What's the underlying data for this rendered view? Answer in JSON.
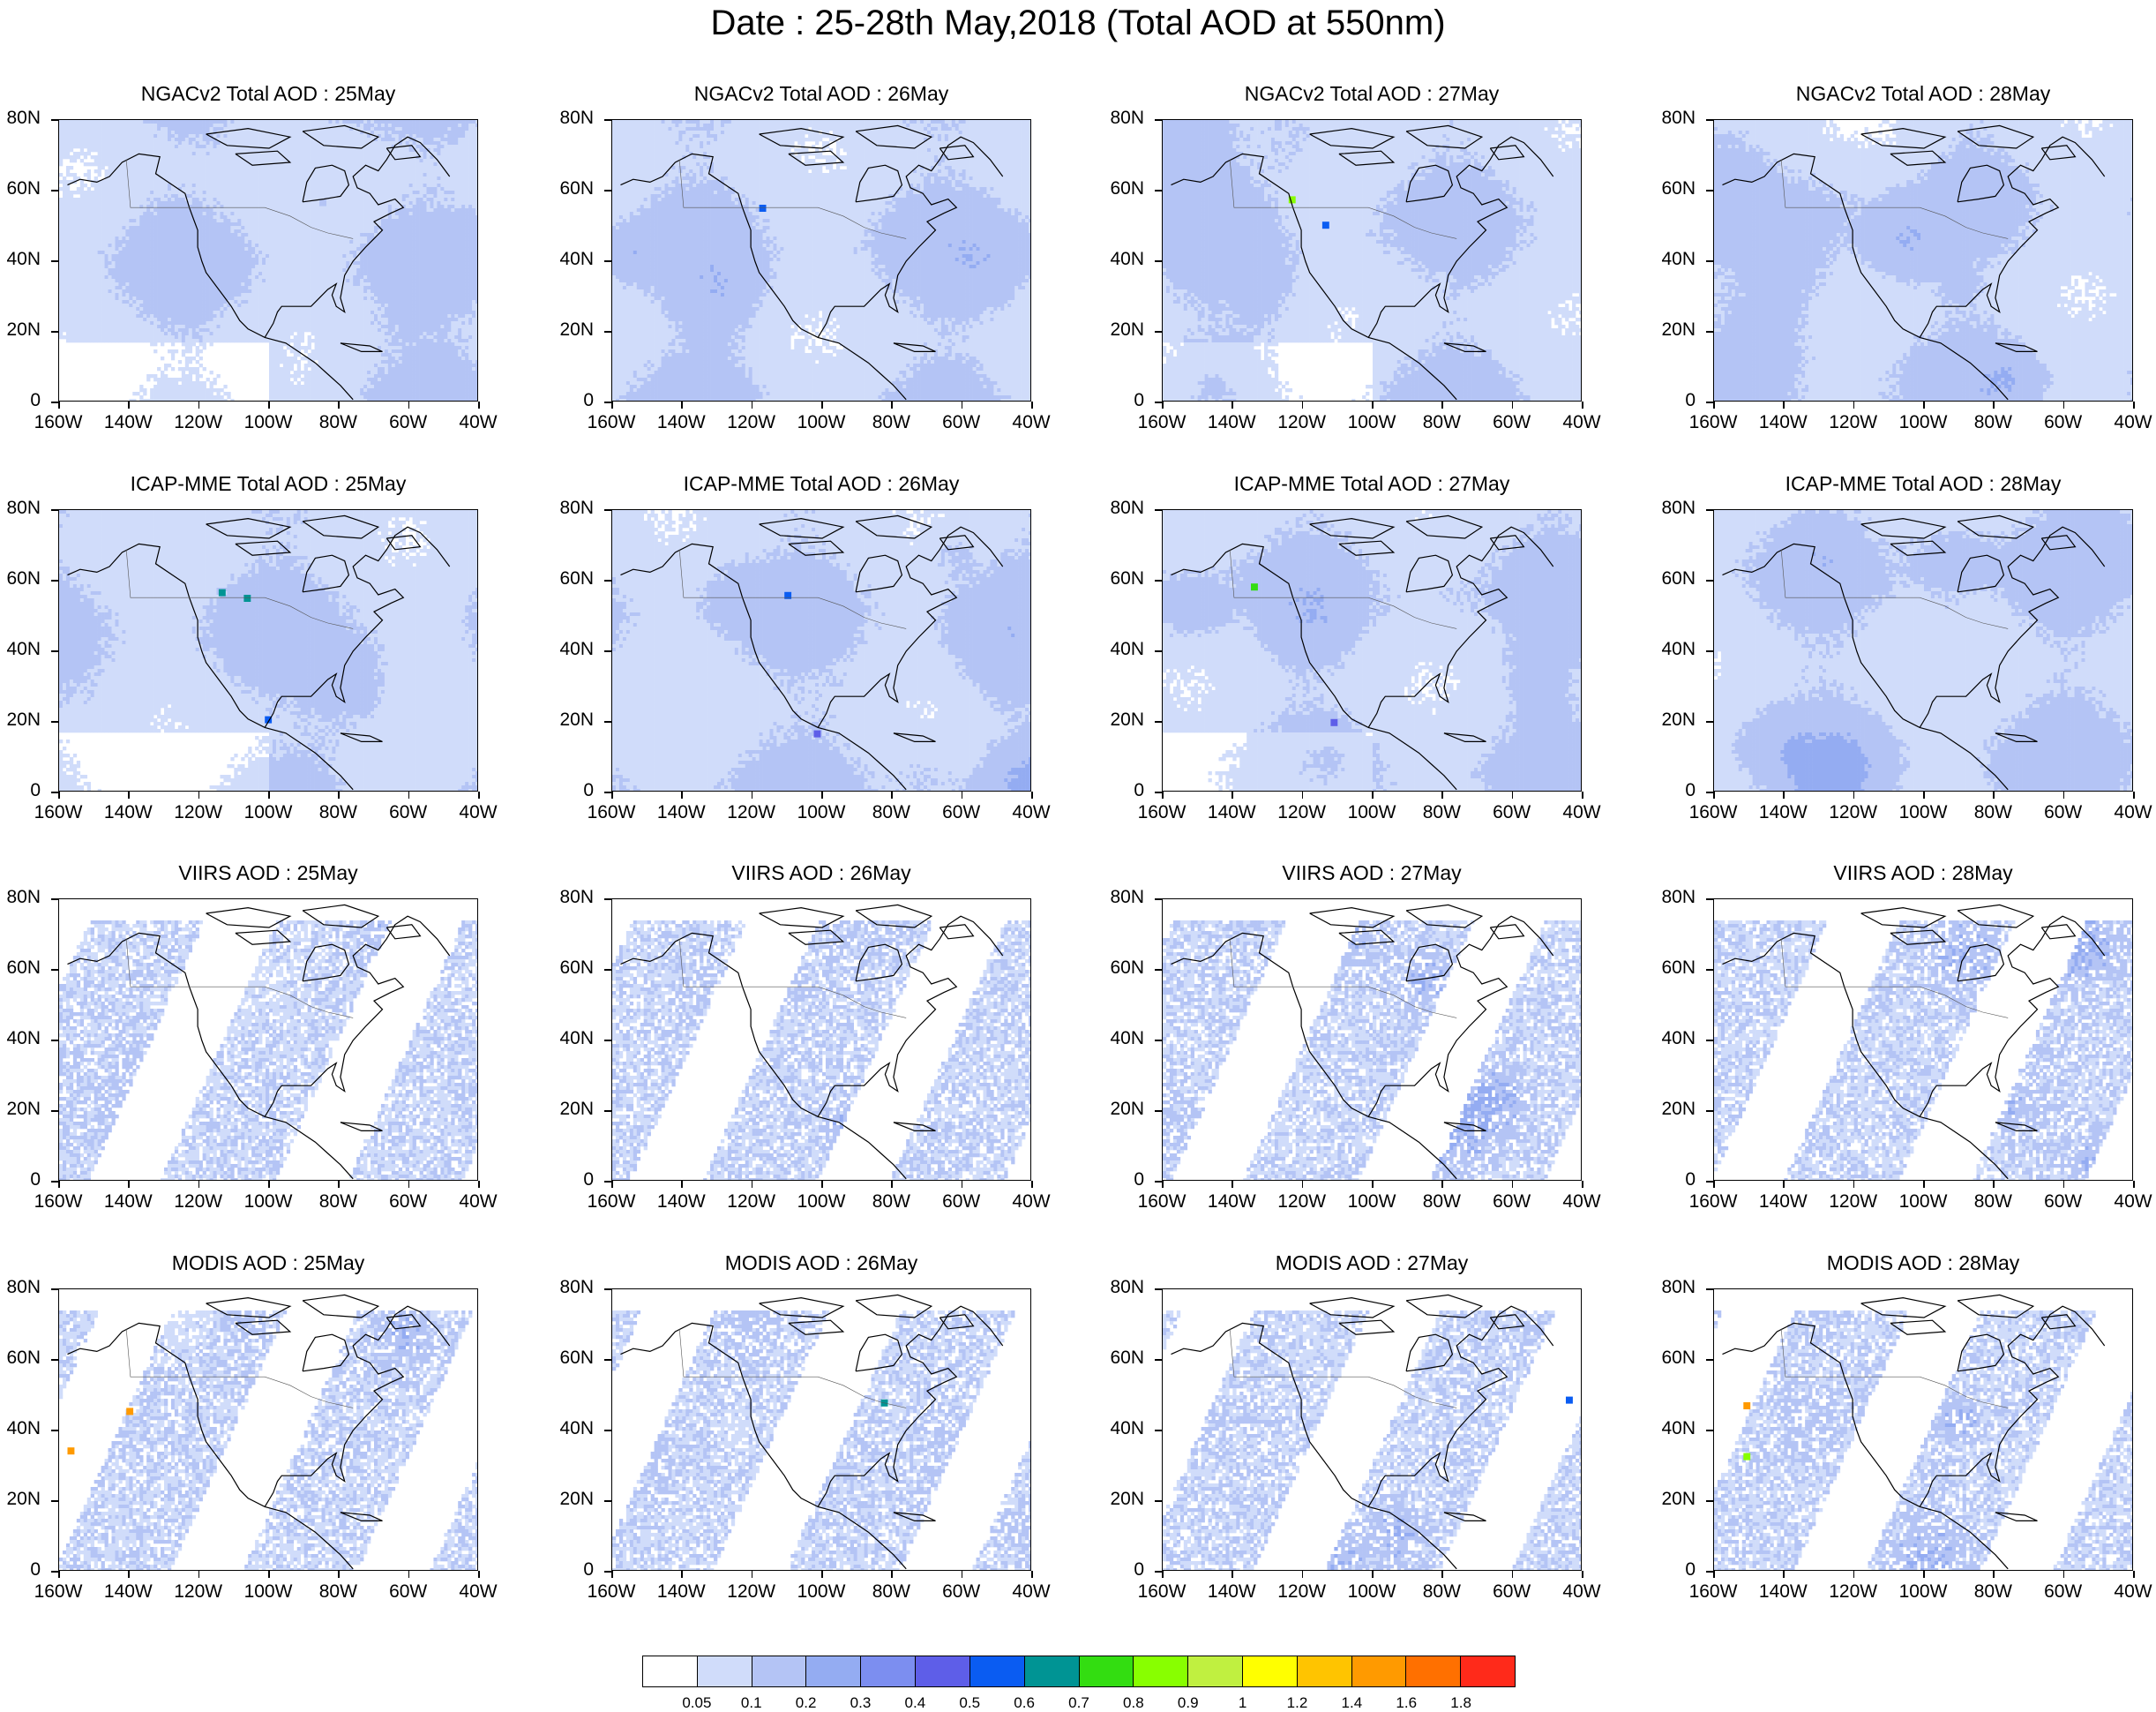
{
  "title": "Date : 25-28th May,2018 (Total AOD at 550nm)",
  "panels": [
    {
      "title": "NGACv2 Total AOD : 25May",
      "kind": "model",
      "seed": 11,
      "fires": [
        [
          62,
          28,
          2
        ]
      ]
    },
    {
      "title": "NGACv2 Total AOD : 26May",
      "kind": "model",
      "seed": 12,
      "fires": [
        [
          35,
          30,
          6
        ]
      ]
    },
    {
      "title": "NGACv2 Total AOD : 27May",
      "kind": "model",
      "seed": 13,
      "fires": [
        [
          30,
          27,
          9
        ],
        [
          38,
          36,
          6
        ]
      ]
    },
    {
      "title": "NGACv2 Total AOD : 28May",
      "kind": "model",
      "seed": 14,
      "fires": []
    },
    {
      "title": "ICAP-MME Total AOD : 25May",
      "kind": "model",
      "seed": 21,
      "fires": [
        [
          38,
          28,
          7
        ],
        [
          44,
          30,
          7
        ],
        [
          49,
          73,
          6
        ]
      ]
    },
    {
      "title": "ICAP-MME Total AOD : 26May",
      "kind": "model",
      "seed": 22,
      "fires": [
        [
          41,
          29,
          6
        ],
        [
          48,
          78,
          5
        ]
      ]
    },
    {
      "title": "ICAP-MME Total AOD : 27May",
      "kind": "model",
      "seed": 23,
      "fires": [
        [
          21,
          26,
          8
        ],
        [
          40,
          74,
          5
        ]
      ]
    },
    {
      "title": "ICAP-MME Total AOD : 28May",
      "kind": "model",
      "seed": 24,
      "fires": []
    },
    {
      "title": "VIIRS AOD : 25May",
      "kind": "sat",
      "seed": 31,
      "fires": []
    },
    {
      "title": "VIIRS AOD : 26May",
      "kind": "sat",
      "seed": 32,
      "fires": []
    },
    {
      "title": "VIIRS AOD : 27May",
      "kind": "sat",
      "seed": 33,
      "fires": []
    },
    {
      "title": "VIIRS AOD : 28May",
      "kind": "sat",
      "seed": 34,
      "fires": []
    },
    {
      "title": "MODIS AOD : 25May",
      "kind": "sat",
      "seed": 41,
      "fires": [
        [
          2,
          56,
          13
        ],
        [
          16,
          42,
          13
        ]
      ]
    },
    {
      "title": "MODIS AOD : 26May",
      "kind": "sat",
      "seed": 42,
      "fires": [
        [
          64,
          39,
          7
        ]
      ]
    },
    {
      "title": "MODIS AOD : 27May",
      "kind": "sat",
      "seed": 43,
      "fires": [
        [
          96,
          38,
          6
        ]
      ]
    },
    {
      "title": "MODIS AOD : 28May",
      "kind": "sat",
      "seed": 44,
      "fires": [
        [
          7,
          40,
          13
        ],
        [
          7,
          58,
          9
        ]
      ]
    }
  ],
  "lat_labels": [
    "80N",
    "60N",
    "40N",
    "20N",
    "0"
  ],
  "lon_labels": [
    "160W",
    "140W",
    "120W",
    "100W",
    "80W",
    "60W",
    "40W"
  ],
  "colorbar": {
    "labels": [
      "0.05",
      "0.1",
      "0.2",
      "0.3",
      "0.4",
      "0.5",
      "0.6",
      "0.7",
      "0.8",
      "0.9",
      "1",
      "1.2",
      "1.4",
      "1.6",
      "1.8"
    ],
    "colors": [
      "#ffffff",
      "#d0dcfa",
      "#b4c4f5",
      "#94acf2",
      "#7c8ef0",
      "#5e5ee8",
      "#0a5cf2",
      "#009494",
      "#33dd11",
      "#88ff00",
      "#c0f040",
      "#ffff00",
      "#ffc400",
      "#ff9a00",
      "#ff7000",
      "#ff2a1a"
    ]
  }
}
